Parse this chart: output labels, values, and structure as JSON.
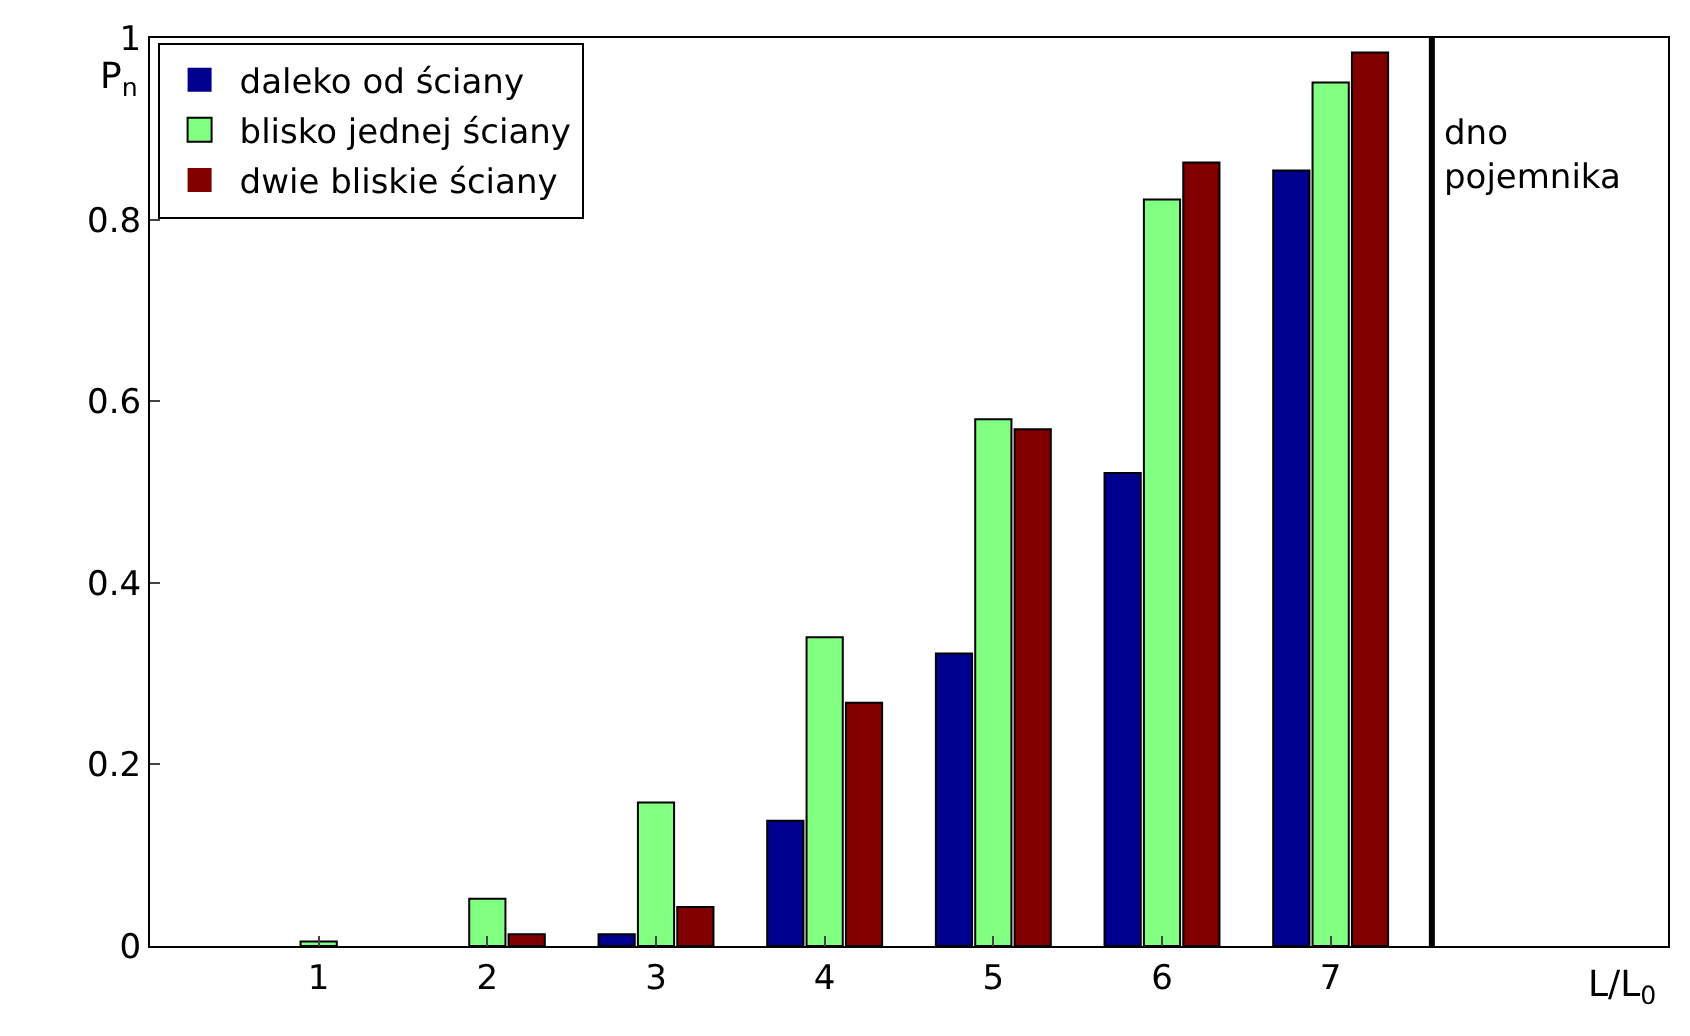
{
  "chart_data": {
    "type": "bar",
    "xlabel": "L/L$_{0}$",
    "ylabel": "P$_{n}$",
    "x": [
      1,
      2,
      3,
      4,
      5,
      6,
      7
    ],
    "series": [
      {
        "name": "daleko od ściany",
        "color": "#00008f",
        "values": [
          0,
          0,
          0.013,
          0.138,
          0.322,
          0.521,
          0.854
        ]
      },
      {
        "name": "blisko jednej ściany",
        "color": "#80ff80",
        "values": [
          0.005,
          0.052,
          0.158,
          0.34,
          0.58,
          0.822,
          0.951
        ]
      },
      {
        "name": "dwie bliskie ściany",
        "color": "#800000",
        "values": [
          0,
          0.013,
          0.043,
          0.268,
          0.569,
          0.863,
          0.984
        ]
      }
    ],
    "xlim": [
      0,
      9
    ],
    "xticks": [
      1,
      2,
      3,
      4,
      5,
      6,
      7
    ],
    "ylim": [
      0,
      1
    ],
    "yticks": [
      0,
      0.2,
      0.4,
      0.6,
      0.8,
      1
    ],
    "ref_lines": [
      {
        "axis": "x",
        "value": 7.6,
        "label": "dno\npojemnika",
        "color": "#000000"
      }
    ],
    "legend": "top left"
  }
}
